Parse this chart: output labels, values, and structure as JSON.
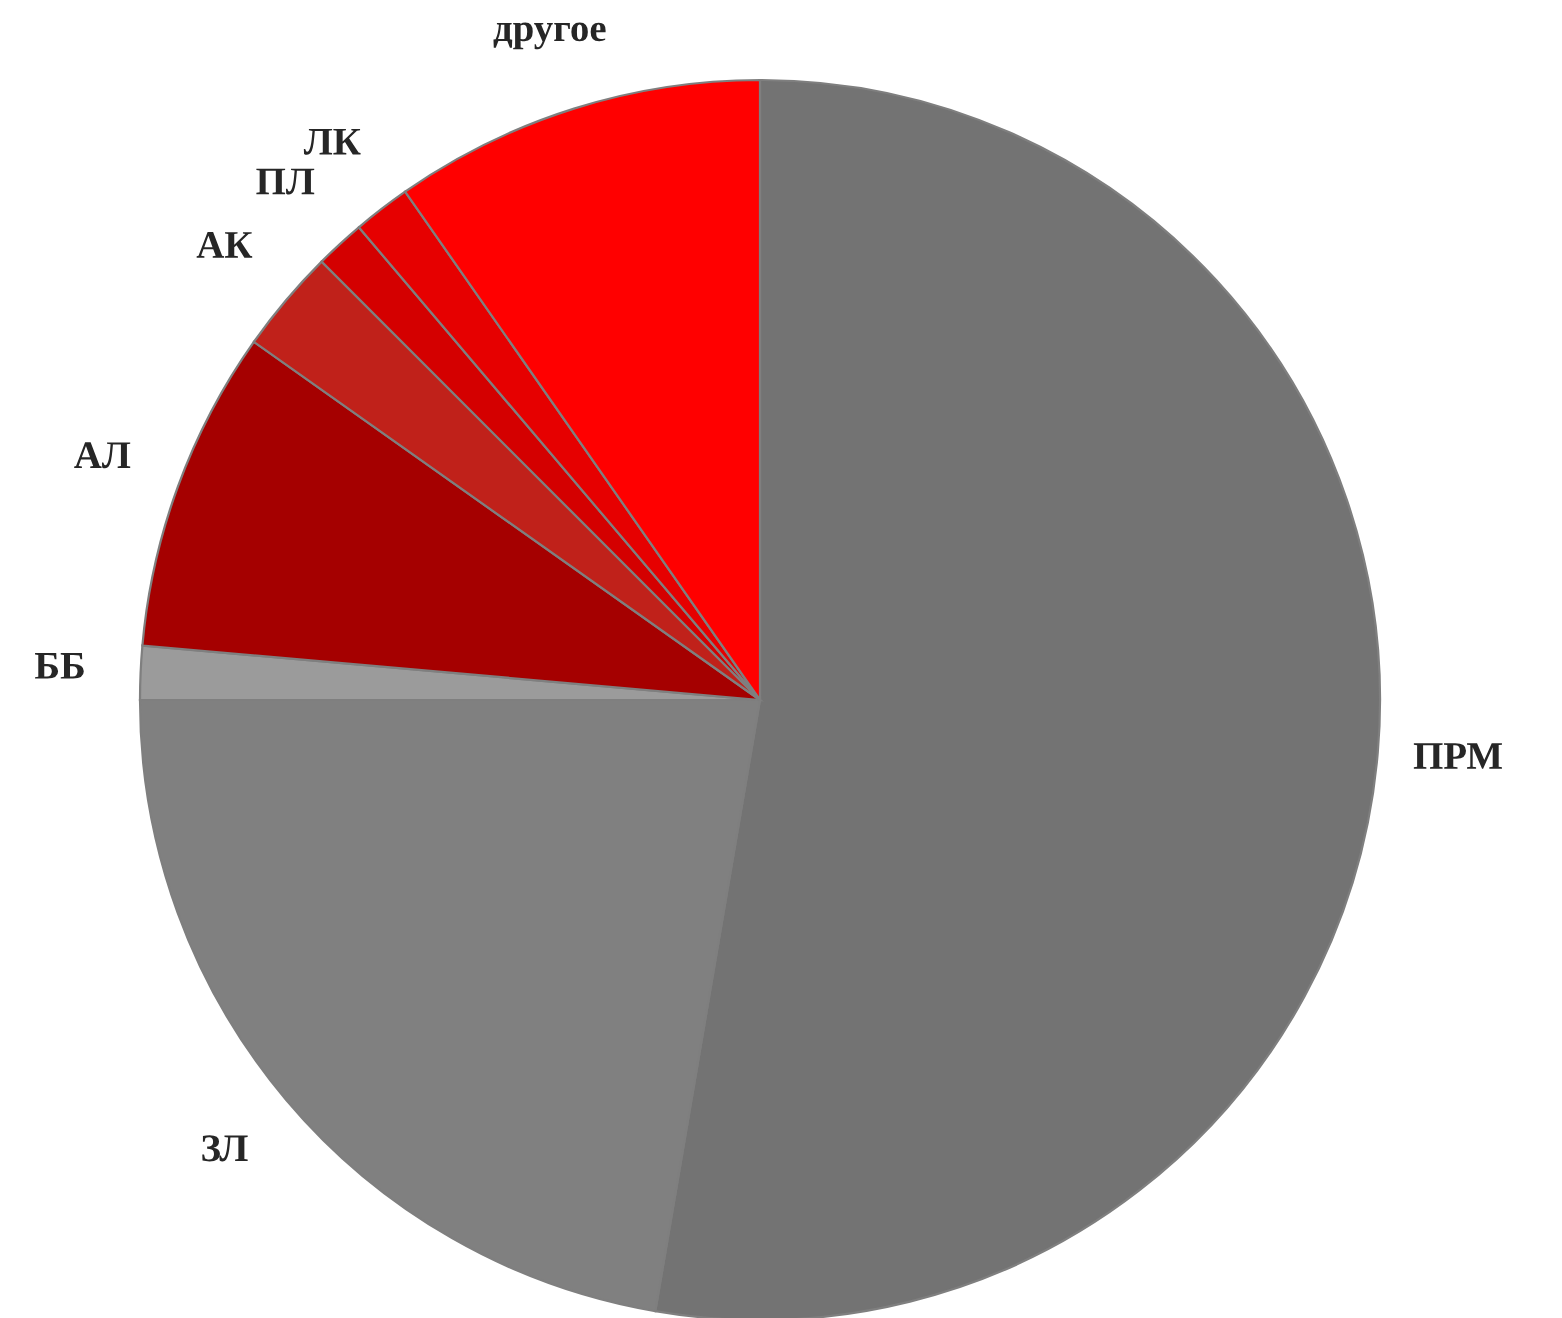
{
  "chart_data": {
    "type": "pie",
    "categories": [
      "ПРМ",
      "ЗЛ",
      "ББ",
      "АЛ",
      "АК",
      "ПЛ",
      "ЛК",
      "другое"
    ],
    "values": [
      52.7,
      22.3,
      1.4,
      8.4,
      2.7,
      1.3,
      1.5,
      9.7
    ],
    "colors": [
      "#737373",
      "#808080",
      "#9b9b9b",
      "#a50000",
      "#c0211a",
      "#d40000",
      "#e60000",
      "#ff0000"
    ],
    "legend": false
  }
}
